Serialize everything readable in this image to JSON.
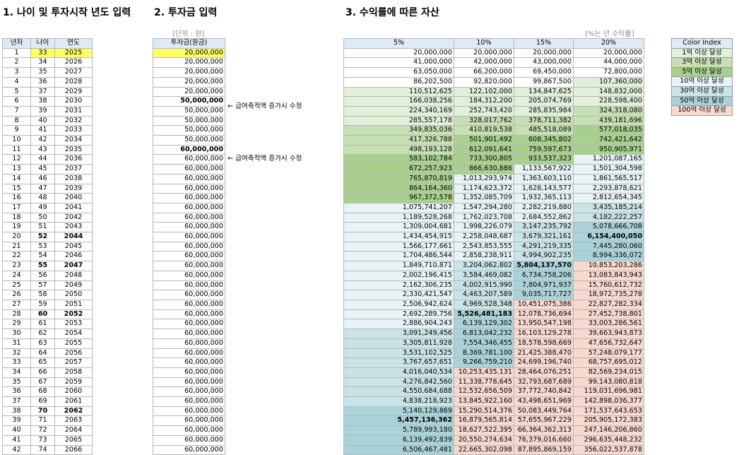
{
  "section1": {
    "title": "1. 나이 및 투자시작 년도 입력",
    "headers": [
      "년차",
      "나이",
      "연도"
    ]
  },
  "section2": {
    "title": "2. 투자금 입력",
    "unit": "[단위 : 원]",
    "header": "투자금(원금)"
  },
  "section3": {
    "title": "3. 수익률에 따른 자산",
    "unit": "[%는 년 수익률]",
    "headers": [
      "5%",
      "10%",
      "15%",
      "20%"
    ]
  },
  "annotations": [
    {
      "row": 6,
      "text": "← 급여축적액 증가시 수정"
    },
    {
      "row": 11,
      "text": "← 급여축적액 증가시 수정"
    }
  ],
  "legend": {
    "title": "Color Index",
    "items": [
      {
        "label": "1억 이상 달성",
        "color": "#e2efda"
      },
      {
        "label": "3억 이상 달성",
        "color": "#c6e0b4"
      },
      {
        "label": "5억 이상 달성",
        "color": "#a9d08e"
      },
      {
        "label": "10억 이상 달성",
        "color": "#e7f3f5"
      },
      {
        "label": "30억 이상 달성",
        "color": "#c9e4e7"
      },
      {
        "label": "50억 이상 달성",
        "color": "#a9d3d9"
      },
      {
        "label": "100억 이상 달성",
        "color": "#f8d9d0"
      }
    ]
  },
  "rows": [
    {
      "year": "1",
      "age": "33",
      "calyear": "2025",
      "invest": "20,000,000",
      "r5": "20,000,000",
      "r10": "20,000,000",
      "r15": "20,000,000",
      "r20": "20,000,000"
    },
    {
      "year": "2",
      "age": "34",
      "calyear": "2026",
      "invest": "20,000,000",
      "r5": "41,000,000",
      "r10": "42,000,000",
      "r15": "43,000,000",
      "r20": "44,000,000"
    },
    {
      "year": "3",
      "age": "35",
      "calyear": "2027",
      "invest": "20,000,000",
      "r5": "63,050,000",
      "r10": "66,200,000",
      "r15": "69,450,000",
      "r20": "72,800,000"
    },
    {
      "year": "4",
      "age": "36",
      "calyear": "2028",
      "invest": "20,000,000",
      "r5": "86,202,500",
      "r10": "92,820,000",
      "r15": "99,867,500",
      "r20": "107,360,000"
    },
    {
      "year": "5",
      "age": "37",
      "calyear": "2029",
      "invest": "20,000,000",
      "r5": "110,512,625",
      "r10": "122,102,000",
      "r15": "134,847,625",
      "r20": "148,832,000"
    },
    {
      "year": "6",
      "age": "38",
      "calyear": "2030",
      "invest": "50,000,000",
      "r5": "166,038,256",
      "r10": "184,312,200",
      "r15": "205,074,769",
      "r20": "228,598,400"
    },
    {
      "year": "7",
      "age": "39",
      "calyear": "2031",
      "invest": "50,000,000",
      "r5": "224,340,169",
      "r10": "252,743,420",
      "r15": "285,835,984",
      "r20": "324,318,080"
    },
    {
      "year": "8",
      "age": "40",
      "calyear": "2032",
      "invest": "50,000,000",
      "r5": "285,557,178",
      "r10": "328,017,762",
      "r15": "378,711,382",
      "r20": "439,181,696"
    },
    {
      "year": "9",
      "age": "41",
      "calyear": "2033",
      "invest": "50,000,000",
      "r5": "349,835,036",
      "r10": "410,819,538",
      "r15": "485,518,089",
      "r20": "577,018,035"
    },
    {
      "year": "10",
      "age": "42",
      "calyear": "2034",
      "invest": "50,000,000",
      "r5": "417,326,788",
      "r10": "501,901,492",
      "r15": "608,345,802",
      "r20": "742,421,642"
    },
    {
      "year": "11",
      "age": "43",
      "calyear": "2035",
      "invest": "60,000,000",
      "r5": "498,193,128",
      "r10": "612,091,641",
      "r15": "759,597,673",
      "r20": "950,905,971"
    },
    {
      "year": "12",
      "age": "44",
      "calyear": "2036",
      "invest": "60,000,000",
      "r5": "583,102,784",
      "r10": "733,300,805",
      "r15": "933,537,323",
      "r20": "1,201,087,165"
    },
    {
      "year": "13",
      "age": "45",
      "calyear": "2037",
      "invest": "60,000,000",
      "r5": "672,257,923",
      "r10": "866,630,886",
      "r15": "1,133,567,922",
      "r20": "1,501,304,598"
    },
    {
      "year": "14",
      "age": "46",
      "calyear": "2038",
      "invest": "60,000,000",
      "r5": "765,870,819",
      "r10": "1,013,293,974",
      "r15": "1,363,603,110",
      "r20": "1,861,565,517"
    },
    {
      "year": "15",
      "age": "47",
      "calyear": "2039",
      "invest": "60,000,000",
      "r5": "864,164,360",
      "r10": "1,174,623,372",
      "r15": "1,628,143,577",
      "r20": "2,293,878,621"
    },
    {
      "year": "16",
      "age": "48",
      "calyear": "2040",
      "invest": "60,000,000",
      "r5": "967,372,578",
      "r10": "1,352,085,709",
      "r15": "1,932,365,113",
      "r20": "2,812,654,345"
    },
    {
      "year": "17",
      "age": "49",
      "calyear": "2041",
      "invest": "60,000,000",
      "r5": "1,075,741,207",
      "r10": "1,547,294,280",
      "r15": "2,282,219,880",
      "r20": "3,435,185,214"
    },
    {
      "year": "18",
      "age": "50",
      "calyear": "2042",
      "invest": "60,000,000",
      "r5": "1,189,528,268",
      "r10": "1,762,023,708",
      "r15": "2,684,552,862",
      "r20": "4,182,222,257"
    },
    {
      "year": "19",
      "age": "51",
      "calyear": "2043",
      "invest": "60,000,000",
      "r5": "1,309,004,681",
      "r10": "1,998,226,079",
      "r15": "3,147,235,792",
      "r20": "5,078,666,708"
    },
    {
      "year": "20",
      "age": "52",
      "calyear": "2044",
      "invest": "60,000,000",
      "r5": "1,434,454,915",
      "r10": "2,258,048,687",
      "r15": "3,679,321,161",
      "r20": "6,154,400,050"
    },
    {
      "year": "21",
      "age": "53",
      "calyear": "2045",
      "invest": "60,000,000",
      "r5": "1,566,177,661",
      "r10": "2,543,853,555",
      "r15": "4,291,219,335",
      "r20": "7,445,280,060"
    },
    {
      "year": "22",
      "age": "54",
      "calyear": "2046",
      "invest": "60,000,000",
      "r5": "1,704,486,544",
      "r10": "2,858,238,911",
      "r15": "4,994,902,235",
      "r20": "8,994,336,072"
    },
    {
      "year": "23",
      "age": "55",
      "calyear": "2047",
      "invest": "60,000,000",
      "r5": "1,849,710,871",
      "r10": "3,204,062,802",
      "r15": "5,804,137,570",
      "r20": "10,853,203,286"
    },
    {
      "year": "24",
      "age": "56",
      "calyear": "2048",
      "invest": "60,000,000",
      "r5": "2,002,196,415",
      "r10": "3,584,469,082",
      "r15": "6,734,758,206",
      "r20": "13,083,843,943"
    },
    {
      "year": "25",
      "age": "57",
      "calyear": "2049",
      "invest": "60,000,000",
      "r5": "2,162,306,235",
      "r10": "4,002,915,990",
      "r15": "7,804,971,937",
      "r20": "15,760,612,732"
    },
    {
      "year": "26",
      "age": "58",
      "calyear": "2050",
      "invest": "60,000,000",
      "r5": "2,330,421,547",
      "r10": "4,463,207,589",
      "r15": "9,035,717,727",
      "r20": "18,972,735,278"
    },
    {
      "year": "27",
      "age": "59",
      "calyear": "2051",
      "invest": "60,000,000",
      "r5": "2,506,942,624",
      "r10": "4,969,528,348",
      "r15": "10,451,075,386",
      "r20": "22,827,282,334"
    },
    {
      "year": "28",
      "age": "60",
      "calyear": "2052",
      "invest": "60,000,000",
      "r5": "2,692,289,756",
      "r10": "5,526,481,183",
      "r15": "12,078,736,694",
      "r20": "27,452,738,801"
    },
    {
      "year": "29",
      "age": "61",
      "calyear": "2053",
      "invest": "60,000,000",
      "r5": "2,886,904,243",
      "r10": "6,139,129,302",
      "r15": "13,950,547,198",
      "r20": "33,003,286,561"
    },
    {
      "year": "30",
      "age": "62",
      "calyear": "2054",
      "invest": "60,000,000",
      "r5": "3,091,249,456",
      "r10": "6,813,042,232",
      "r15": "16,103,129,278",
      "r20": "39,663,943,873"
    },
    {
      "year": "31",
      "age": "63",
      "calyear": "2055",
      "invest": "60,000,000",
      "r5": "3,305,811,928",
      "r10": "7,554,346,455",
      "r15": "18,578,598,669",
      "r20": "47,656,732,647"
    },
    {
      "year": "32",
      "age": "64",
      "calyear": "2056",
      "invest": "60,000,000",
      "r5": "3,531,102,525",
      "r10": "8,369,781,100",
      "r15": "21,425,388,470",
      "r20": "57,248,079,177"
    },
    {
      "year": "33",
      "age": "65",
      "calyear": "2057",
      "invest": "60,000,000",
      "r5": "3,767,657,651",
      "r10": "9,266,759,210",
      "r15": "24,699,196,740",
      "r20": "68,757,695,012"
    },
    {
      "year": "34",
      "age": "66",
      "calyear": "2058",
      "invest": "60,000,000",
      "r5": "4,016,040,534",
      "r10": "10,253,435,131",
      "r15": "28,464,076,251",
      "r20": "82,569,234,015"
    },
    {
      "year": "35",
      "age": "67",
      "calyear": "2059",
      "invest": "60,000,000",
      "r5": "4,276,842,560",
      "r10": "11,338,778,645",
      "r15": "32,793,687,689",
      "r20": "99,143,080,818"
    },
    {
      "year": "36",
      "age": "68",
      "calyear": "2060",
      "invest": "60,000,000",
      "r5": "4,550,684,688",
      "r10": "12,532,656,509",
      "r15": "37,772,740,842",
      "r20": "119,031,696,981"
    },
    {
      "year": "37",
      "age": "69",
      "calyear": "2061",
      "invest": "60,000,000",
      "r5": "4,838,218,923",
      "r10": "13,845,922,160",
      "r15": "43,498,651,969",
      "r20": "142,898,036,377"
    },
    {
      "year": "38",
      "age": "70",
      "calyear": "2062",
      "invest": "60,000,000",
      "r5": "5,140,129,869",
      "r10": "15,290,514,376",
      "r15": "50,083,449,764",
      "r20": "171,537,643,653"
    },
    {
      "year": "39",
      "age": "71",
      "calyear": "2063",
      "invest": "60,000,000",
      "r5": "5,457,136,362",
      "r10": "16,879,565,814",
      "r15": "57,655,967,229",
      "r20": "205,905,172,383"
    },
    {
      "year": "40",
      "age": "72",
      "calyear": "2064",
      "invest": "60,000,000",
      "r5": "5,789,993,180",
      "r10": "18,627,522,395",
      "r15": "66,364,362,313",
      "r20": "247,146,206,860"
    },
    {
      "year": "41",
      "age": "73",
      "calyear": "2065",
      "invest": "60,000,000",
      "r5": "6,139,492,839",
      "r10": "20,550,274,634",
      "r15": "76,379,016,660",
      "r20": "296,635,448,232"
    },
    {
      "year": "42",
      "age": "74",
      "calyear": "2066",
      "invest": "60,000,000",
      "r5": "6,506,467,481",
      "r10": "22,665,302,098",
      "r15": "87,895,869,159",
      "r20": "356,022,537,878"
    }
  ]
}
